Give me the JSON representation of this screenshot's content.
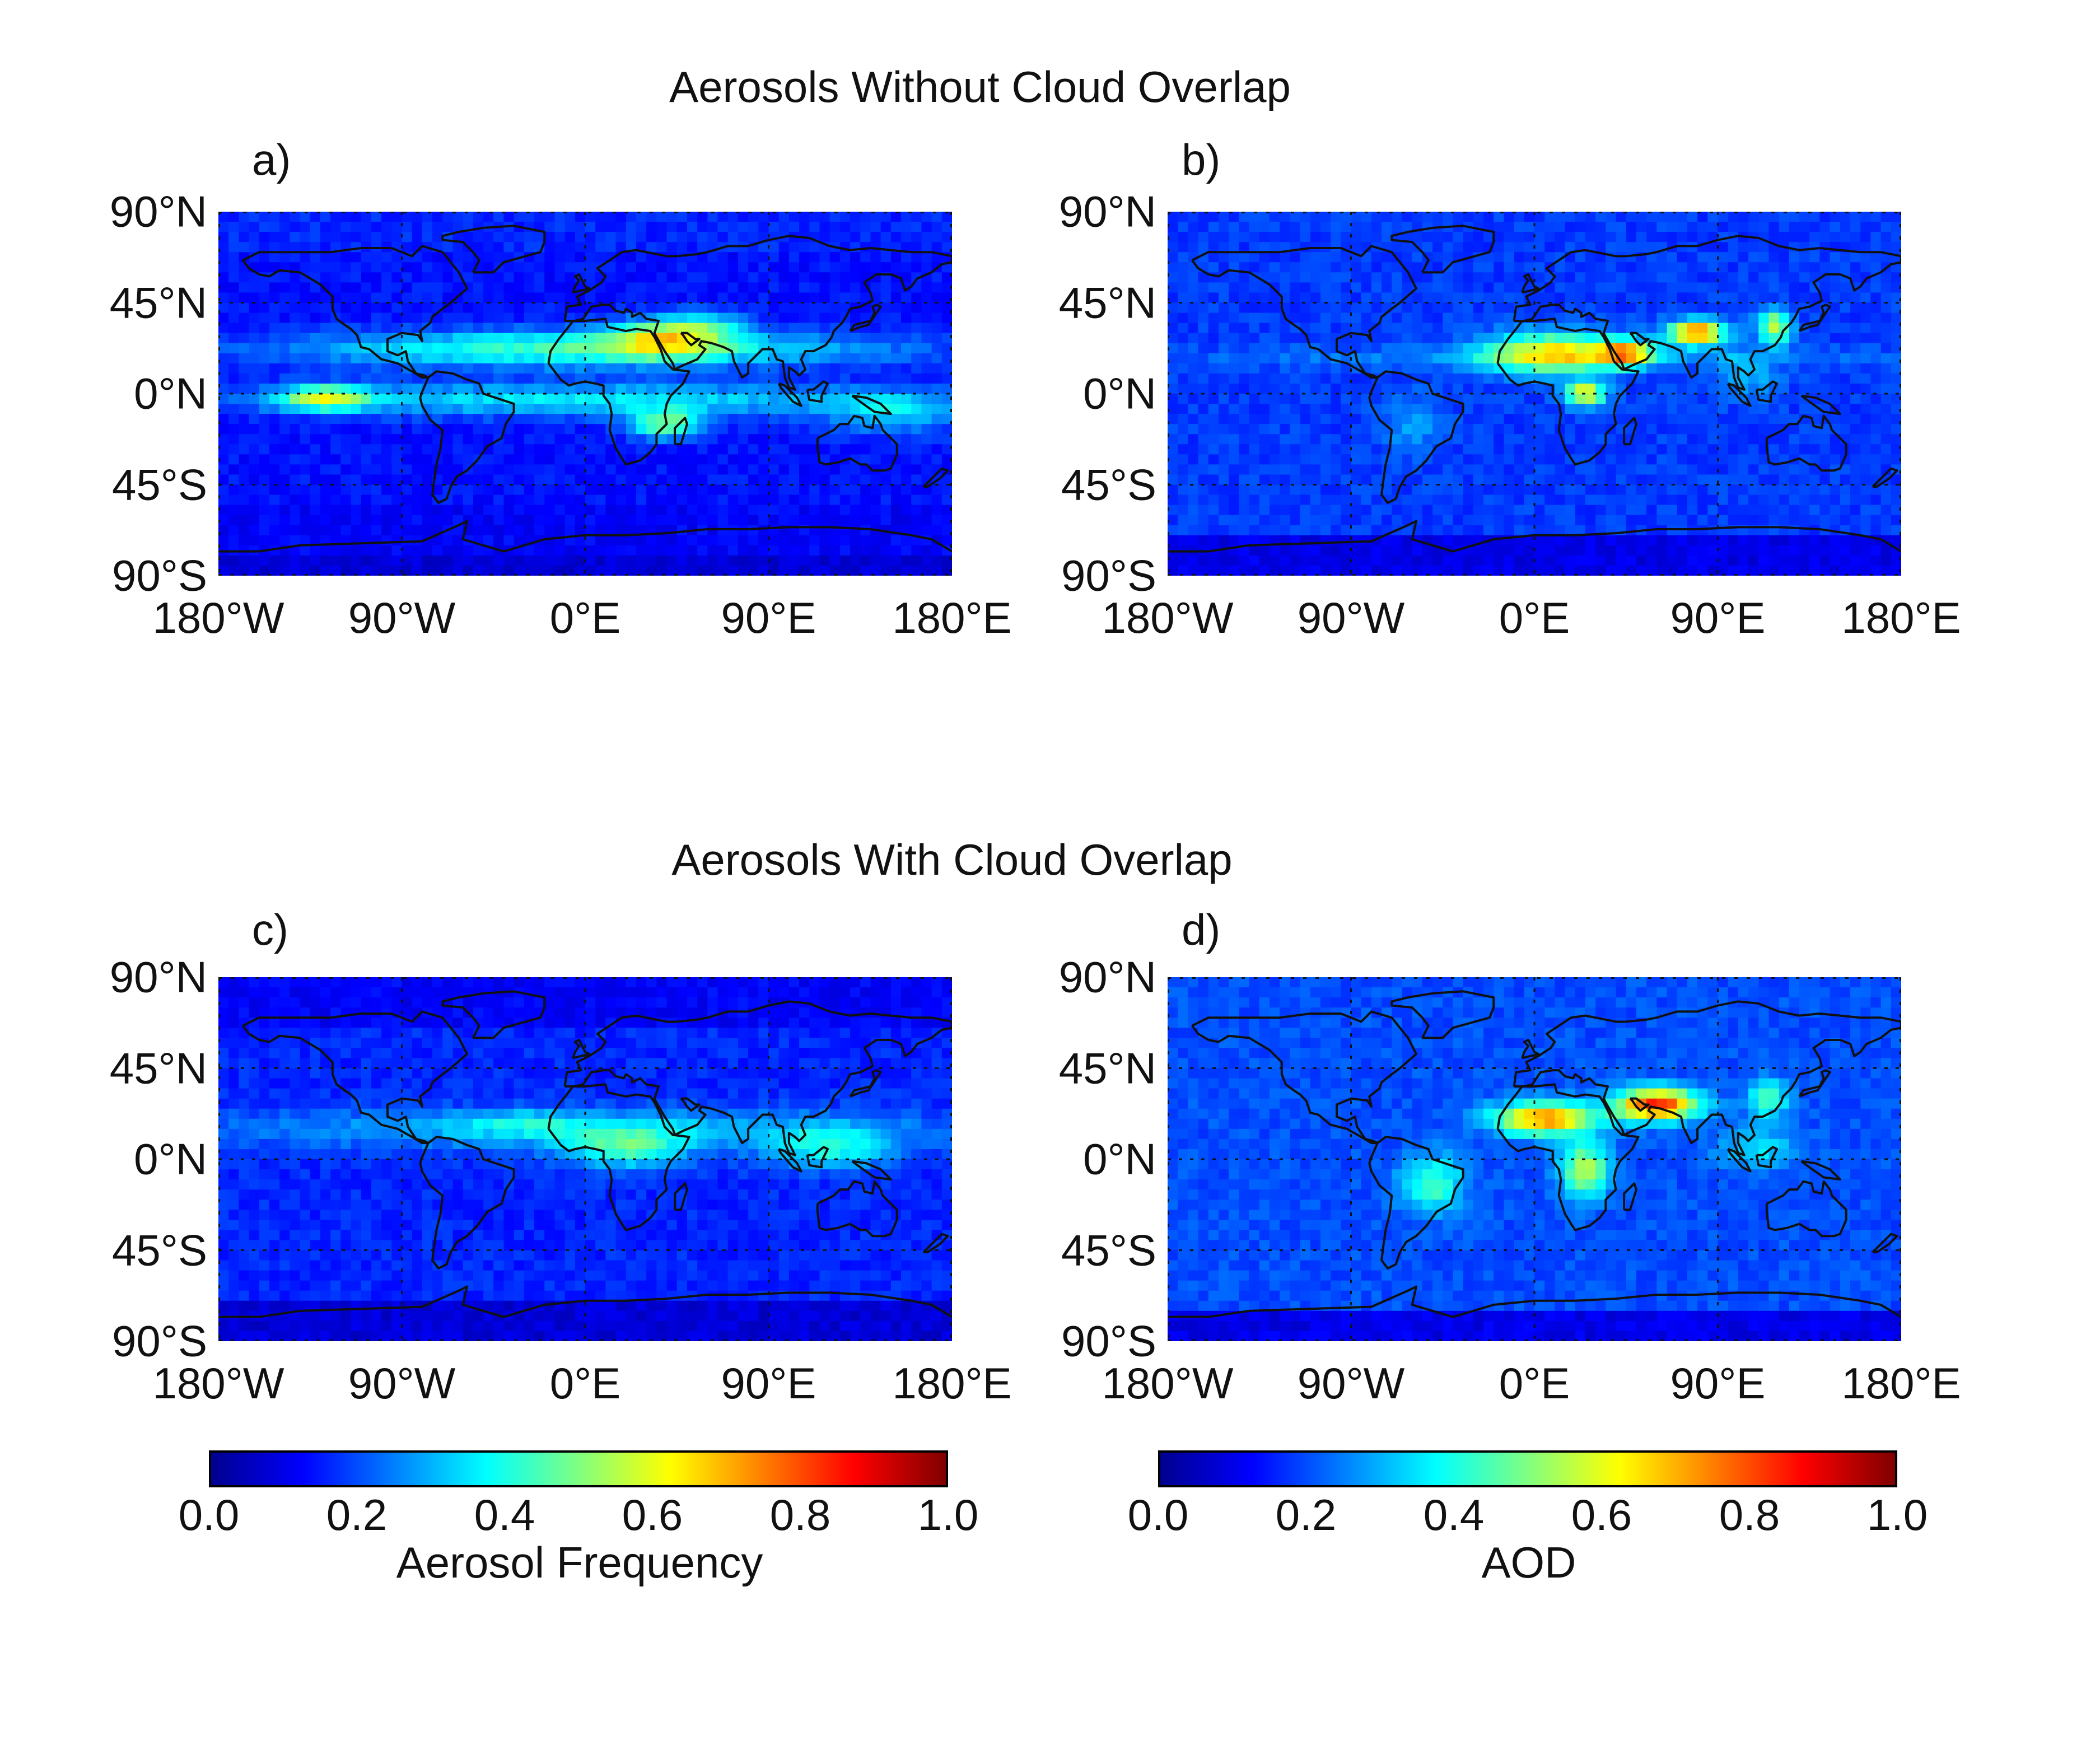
{
  "figure": {
    "top_fragment": "quency",
    "section_top_title": "Aerosols Without Cloud Overlap",
    "section_bottom_title": "Aerosols With Cloud Overlap",
    "lat_labels": [
      "90°N",
      "45°N",
      "0°N",
      "45°S",
      "90°S"
    ],
    "lon_labels": [
      "180°W",
      "90°W",
      "0°E",
      "90°E",
      "180°E"
    ],
    "panels": [
      {
        "id": "a",
        "label": "a)",
        "variable": "Aerosol Frequency",
        "cloud_overlap": false
      },
      {
        "id": "b",
        "label": "b)",
        "variable": "AOD",
        "cloud_overlap": false
      },
      {
        "id": "c",
        "label": "c)",
        "variable": "Aerosol Frequency",
        "cloud_overlap": true
      },
      {
        "id": "d",
        "label": "d)",
        "variable": "AOD",
        "cloud_overlap": true
      }
    ],
    "colorbars": [
      {
        "title": "Aerosol Frequency",
        "min": 0.0,
        "max": 1.0,
        "tick_labels": [
          "0.0",
          "0.2",
          "0.4",
          "0.6",
          "0.8",
          "1.0"
        ],
        "colormap": "jet"
      },
      {
        "title": "AOD",
        "min": 0.0,
        "max": 1.0,
        "tick_labels": [
          "0.0",
          "0.2",
          "0.4",
          "0.6",
          "0.8",
          "1.0"
        ],
        "colormap": "jet"
      }
    ]
  },
  "map_data": {
    "type": "gridded_global_map",
    "projection": "equirectangular",
    "lon_range": [
      -180,
      180
    ],
    "lat_range": [
      -90,
      90
    ],
    "gridlines_lon": [
      -90,
      0,
      90
    ],
    "gridlines_lat": [
      -45,
      0,
      45
    ],
    "coastlines": true,
    "features": [
      {
        "panel": "a",
        "region": "Sahara / Arabia / Middle East",
        "lon": [
          0,
          75
        ],
        "lat": [
          15,
          40
        ],
        "value": 0.72
      },
      {
        "panel": "a",
        "region": "Tropical east Pacific",
        "lon": [
          -140,
          -100
        ],
        "lat": [
          -10,
          5
        ],
        "value": 0.68
      },
      {
        "panel": "a",
        "region": "Southern Africa",
        "lon": [
          20,
          50
        ],
        "lat": [
          -25,
          -10
        ],
        "value": 0.62
      },
      {
        "panel": "a",
        "region": "Subtropical north belt",
        "lon": [
          -180,
          180
        ],
        "lat": [
          10,
          35
        ],
        "value": 0.5
      },
      {
        "panel": "a",
        "region": "Southern Ocean / Antarctica",
        "lon": [
          -180,
          180
        ],
        "lat": [
          -90,
          -50
        ],
        "value": 0.1
      },
      {
        "panel": "b",
        "region": "Sahara",
        "lon": [
          -10,
          20
        ],
        "lat": [
          15,
          25
        ],
        "value": 0.72
      },
      {
        "panel": "b",
        "region": "Indo-Gangetic / Pakistan",
        "lon": [
          70,
          90
        ],
        "lat": [
          25,
          35
        ],
        "value": 0.85
      },
      {
        "panel": "b",
        "region": "Arabian Peninsula",
        "lon": [
          40,
          55
        ],
        "lat": [
          15,
          25
        ],
        "value": 0.7
      },
      {
        "panel": "b",
        "region": "East China",
        "lon": [
          110,
          125
        ],
        "lat": [
          28,
          40
        ],
        "value": 0.62
      },
      {
        "panel": "b",
        "region": "Central Africa",
        "lon": [
          15,
          30
        ],
        "lat": [
          -5,
          5
        ],
        "value": 0.65
      },
      {
        "panel": "c",
        "region": "Tropical band",
        "lon": [
          -180,
          180
        ],
        "lat": [
          0,
          25
        ],
        "value": 0.38
      },
      {
        "panel": "c",
        "region": "West Africa / Atlantic",
        "lon": [
          0,
          40
        ],
        "lat": [
          -5,
          15
        ],
        "value": 0.48
      },
      {
        "panel": "c",
        "region": "Maritime continent",
        "lon": [
          95,
          150
        ],
        "lat": [
          -10,
          15
        ],
        "value": 0.42
      },
      {
        "panel": "d",
        "region": "Sahara",
        "lon": [
          -15,
          20
        ],
        "lat": [
          15,
          25
        ],
        "value": 0.8
      },
      {
        "panel": "d",
        "region": "Arabia / Iran / Pakistan",
        "lon": [
          45,
          90
        ],
        "lat": [
          15,
          38
        ],
        "value": 0.92
      },
      {
        "panel": "d",
        "region": "Central/Southern Africa",
        "lon": [
          15,
          35
        ],
        "lat": [
          -20,
          5
        ],
        "value": 0.55
      },
      {
        "panel": "d",
        "region": "South America tropics",
        "lon": [
          -60,
          -40
        ],
        "lat": [
          -25,
          -5
        ],
        "value": 0.45
      }
    ]
  }
}
